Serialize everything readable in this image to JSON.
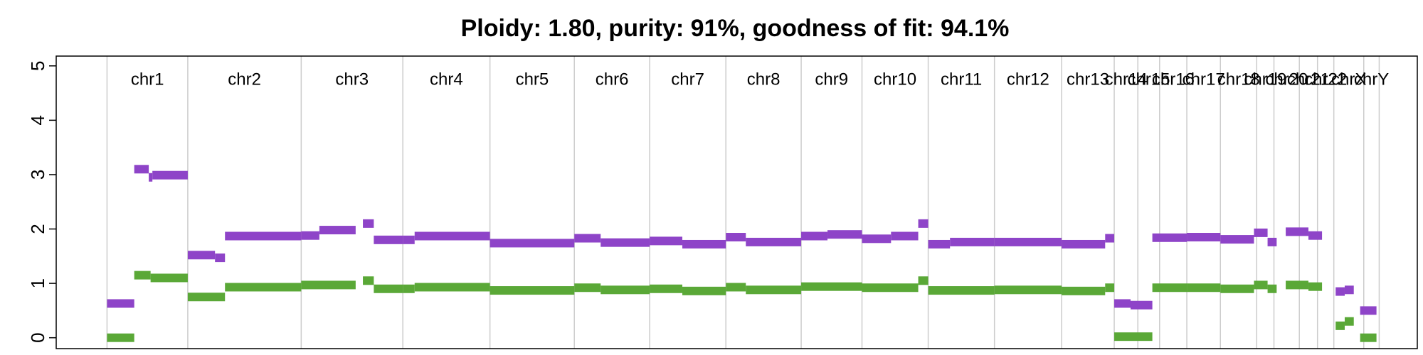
{
  "chart_data": {
    "type": "segments",
    "title": "Ploidy: 1.80, purity: 91%, goodness of fit: 94.1%",
    "chromosomes": [
      "chr1",
      "chr2",
      "chr3",
      "chr4",
      "chr5",
      "chr6",
      "chr7",
      "chr8",
      "chr9",
      "chr10",
      "chr11",
      "chr12",
      "chr13",
      "chr14",
      "chr15",
      "chr16",
      "chr17",
      "chr18",
      "chr19",
      "chr20",
      "chr21",
      "chr22",
      "chrX",
      "chrY"
    ],
    "boundaries": [
      56,
      145,
      270,
      382,
      478,
      571,
      654,
      738,
      821,
      888,
      961,
      1034,
      1108,
      1166,
      1192,
      1216,
      1246,
      1283,
      1323,
      1342,
      1370,
      1390,
      1408,
      1441,
      1458
    ],
    "xlim": [
      0,
      1500
    ],
    "ylim": [
      -0.2,
      5.18
    ],
    "yticks": [
      0,
      1,
      2,
      3,
      4,
      5
    ],
    "grid": true,
    "series": [
      {
        "color": "#8e44c8",
        "segments": [
          [
            56,
            86,
            0.63
          ],
          [
            86,
            102,
            3.1
          ],
          [
            102,
            106,
            2.95
          ],
          [
            106,
            145,
            2.99
          ],
          [
            145,
            175,
            1.52
          ],
          [
            175,
            186,
            1.47
          ],
          [
            186,
            270,
            1.87
          ],
          [
            270,
            290,
            1.88
          ],
          [
            290,
            330,
            1.98
          ],
          [
            338,
            350,
            2.1
          ],
          [
            350,
            382,
            1.8
          ],
          [
            382,
            395,
            1.8
          ],
          [
            395,
            478,
            1.87
          ],
          [
            478,
            571,
            1.74
          ],
          [
            571,
            600,
            1.83
          ],
          [
            600,
            654,
            1.75
          ],
          [
            654,
            690,
            1.78
          ],
          [
            690,
            738,
            1.72
          ],
          [
            738,
            760,
            1.85
          ],
          [
            760,
            821,
            1.76
          ],
          [
            821,
            850,
            1.87
          ],
          [
            850,
            888,
            1.9
          ],
          [
            888,
            920,
            1.82
          ],
          [
            920,
            950,
            1.87
          ],
          [
            950,
            961,
            2.1
          ],
          [
            961,
            985,
            1.72
          ],
          [
            985,
            1034,
            1.76
          ],
          [
            1034,
            1108,
            1.76
          ],
          [
            1108,
            1156,
            1.72
          ],
          [
            1156,
            1166,
            1.83
          ],
          [
            1166,
            1184,
            0.63
          ],
          [
            1184,
            1208,
            0.6
          ],
          [
            1208,
            1246,
            1.84
          ],
          [
            1246,
            1283,
            1.85
          ],
          [
            1283,
            1320,
            1.81
          ],
          [
            1320,
            1335,
            1.93
          ],
          [
            1335,
            1345,
            1.76
          ],
          [
            1355,
            1380,
            1.95
          ],
          [
            1380,
            1395,
            1.88
          ],
          [
            1410,
            1420,
            0.85
          ],
          [
            1420,
            1430,
            0.88
          ],
          [
            1437,
            1455,
            0.5
          ]
        ]
      },
      {
        "color": "#5aa837",
        "segments": [
          [
            56,
            86,
            0.0
          ],
          [
            86,
            104,
            1.15
          ],
          [
            104,
            145,
            1.1
          ],
          [
            145,
            186,
            0.75
          ],
          [
            186,
            270,
            0.93
          ],
          [
            270,
            330,
            0.97
          ],
          [
            338,
            350,
            1.05
          ],
          [
            350,
            382,
            0.9
          ],
          [
            382,
            395,
            0.9
          ],
          [
            395,
            478,
            0.93
          ],
          [
            478,
            571,
            0.87
          ],
          [
            571,
            600,
            0.92
          ],
          [
            600,
            654,
            0.88
          ],
          [
            654,
            690,
            0.9
          ],
          [
            690,
            738,
            0.86
          ],
          [
            738,
            760,
            0.93
          ],
          [
            760,
            821,
            0.88
          ],
          [
            821,
            888,
            0.94
          ],
          [
            888,
            950,
            0.92
          ],
          [
            950,
            961,
            1.05
          ],
          [
            961,
            1034,
            0.87
          ],
          [
            1034,
            1108,
            0.88
          ],
          [
            1108,
            1156,
            0.86
          ],
          [
            1156,
            1166,
            0.92
          ],
          [
            1166,
            1208,
            0.02
          ],
          [
            1208,
            1246,
            0.92
          ],
          [
            1246,
            1283,
            0.92
          ],
          [
            1283,
            1320,
            0.9
          ],
          [
            1320,
            1335,
            0.97
          ],
          [
            1335,
            1345,
            0.9
          ],
          [
            1355,
            1380,
            0.97
          ],
          [
            1380,
            1395,
            0.94
          ],
          [
            1410,
            1420,
            0.22
          ],
          [
            1420,
            1430,
            0.3
          ],
          [
            1437,
            1455,
            0.0
          ]
        ]
      }
    ]
  }
}
